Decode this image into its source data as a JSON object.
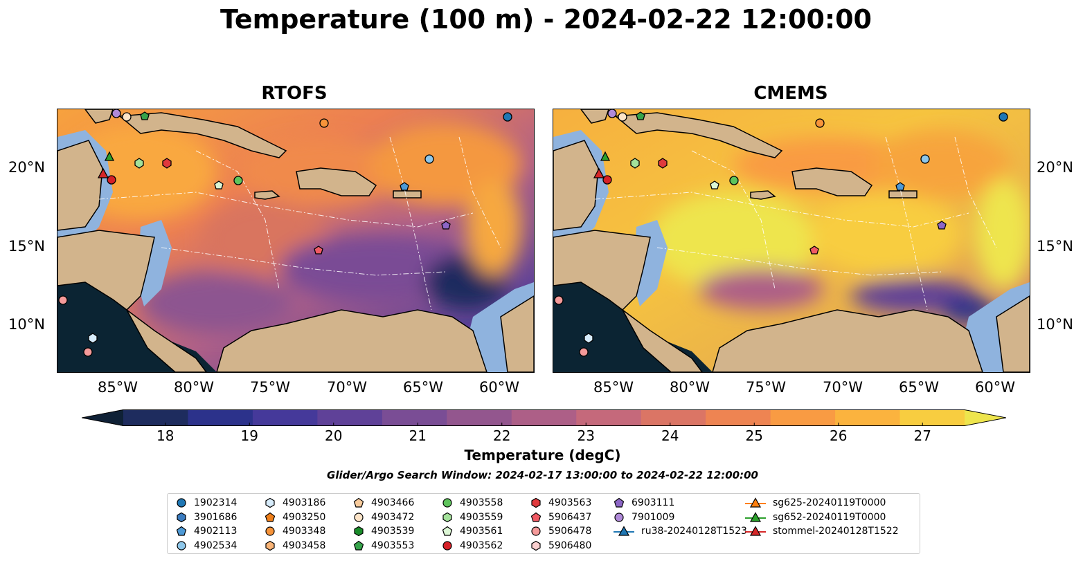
{
  "title": "Temperature (100 m) - 2024-02-22 12:00:00",
  "panels": [
    {
      "name": "RTOFS"
    },
    {
      "name": "CMEMS"
    }
  ],
  "axes": {
    "lon_ticks": [
      "85°W",
      "80°W",
      "75°W",
      "70°W",
      "65°W",
      "60°W"
    ],
    "lat_ticks": [
      "20°N",
      "15°N",
      "10°N"
    ]
  },
  "colorbar": {
    "label": "Temperature (degC)",
    "ticks": [
      "18",
      "19",
      "20",
      "21",
      "22",
      "23",
      "24",
      "25",
      "26",
      "27"
    ],
    "range": [
      17.5,
      27.5
    ],
    "extend": "both",
    "colors": [
      "#0f2136",
      "#1e2c5e",
      "#2c328b",
      "#45399a",
      "#5f4198",
      "#7a4d95",
      "#93568e",
      "#ad5f87",
      "#c5697b",
      "#db7565",
      "#ee8452",
      "#f99b43",
      "#fbb33e",
      "#f8cd40",
      "#eee54d"
    ]
  },
  "map_colors": {
    "land": "#d2b48c",
    "shallow": "#8fb3de",
    "deep_cold": "#0b2433"
  },
  "search_window": "Glider/Argo Search Window: 2024-02-17 13:00:00 to 2024-02-22 12:00:00",
  "legend": {
    "columns": [
      [
        {
          "label": "1902314",
          "marker": "circle",
          "color": "#1f77b4"
        },
        {
          "label": "3901686",
          "marker": "hexagon",
          "color": "#3a7bbf"
        },
        {
          "label": "4902113",
          "marker": "pentagon",
          "color": "#4e9ad6"
        },
        {
          "label": "4902534",
          "marker": "circle",
          "color": "#8ec7ea"
        }
      ],
      [
        {
          "label": "4903186",
          "marker": "hexagon",
          "color": "#d7ecfb"
        },
        {
          "label": "4903250",
          "marker": "pentagon",
          "color": "#ef7f1a"
        },
        {
          "label": "4903348",
          "marker": "circle",
          "color": "#f7943a"
        },
        {
          "label": "4903458",
          "marker": "hexagon",
          "color": "#f9b477"
        }
      ],
      [
        {
          "label": "4903466",
          "marker": "pentagon",
          "color": "#f8cb9c"
        },
        {
          "label": "4903472",
          "marker": "circle",
          "color": "#fde4c8"
        },
        {
          "label": "4903539",
          "marker": "hexagon",
          "color": "#1a8c2a"
        },
        {
          "label": "4903553",
          "marker": "pentagon",
          "color": "#36a34a"
        }
      ],
      [
        {
          "label": "4903558",
          "marker": "circle",
          "color": "#5ec45c"
        },
        {
          "label": "4903559",
          "marker": "hexagon",
          "color": "#a4e29b"
        },
        {
          "label": "4903561",
          "marker": "pentagon",
          "color": "#dcf7d5"
        },
        {
          "label": "4903562",
          "marker": "circle",
          "color": "#d62027"
        }
      ],
      [
        {
          "label": "4903563",
          "marker": "hexagon",
          "color": "#e03a3d"
        },
        {
          "label": "5906437",
          "marker": "pentagon",
          "color": "#f05a64"
        },
        {
          "label": "5906478",
          "marker": "circle",
          "color": "#f59a9a"
        },
        {
          "label": "5906480",
          "marker": "hexagon",
          "color": "#fbd0d0"
        }
      ],
      [
        {
          "label": "6903111",
          "marker": "pentagon",
          "color": "#8c66c6"
        },
        {
          "label": "7901009",
          "marker": "circle",
          "color": "#b08ad9"
        },
        {
          "label": "ru38-20240128T1523",
          "marker": "triangle-line",
          "color": "#1f77b4"
        }
      ],
      [
        {
          "label": "sg625-20240119T0000",
          "marker": "triangle-line",
          "color": "#ff7f0e"
        },
        {
          "label": "sg652-20240119T0000",
          "marker": "triangle-line",
          "color": "#2ca02c"
        },
        {
          "label": "stommel-20240128T1522",
          "marker": "triangle-line",
          "color": "#d62728"
        }
      ]
    ]
  }
}
